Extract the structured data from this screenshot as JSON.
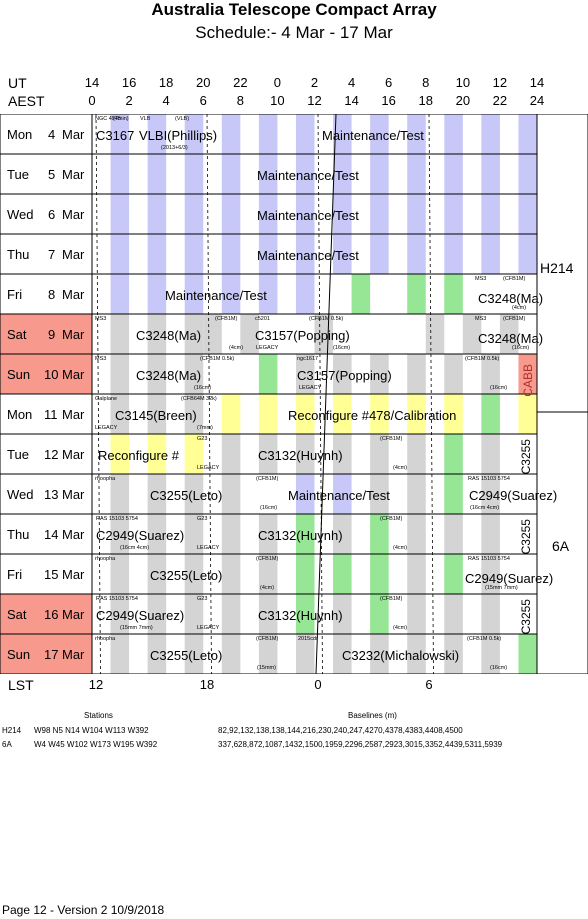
{
  "title": "Australia Telescope Compact Array",
  "subtitle": "Schedule:- 4  Mar - 17 Mar",
  "ut_label": "UT",
  "aest_label": "AEST",
  "ut_ticks": [
    "14",
    "16",
    "18",
    "20",
    "22",
    "0",
    "2",
    "4",
    "6",
    "8",
    "10",
    "12",
    "14"
  ],
  "aest_ticks": [
    "0",
    "2",
    "4",
    "6",
    "8",
    "10",
    "12",
    "14",
    "16",
    "18",
    "20",
    "22",
    "24"
  ],
  "lst_label": "LST",
  "lst_ticks": [
    "12",
    "18",
    "0",
    "6"
  ],
  "configs": [
    {
      "name": "H214"
    },
    {
      "name": "6A"
    }
  ],
  "colors": {
    "weekend": "#f7998c",
    "maint": "#c8c8f8",
    "green": "#96e696",
    "yellow": "#ffff96",
    "grey": "#d4d4d4"
  },
  "days": [
    {
      "day": "Mon",
      "date": "4",
      "month": "Mar",
      "weekend": false
    },
    {
      "day": "Tue",
      "date": "5",
      "month": "Mar",
      "weekend": false
    },
    {
      "day": "Wed",
      "date": "6",
      "month": "Mar",
      "weekend": false
    },
    {
      "day": "Thu",
      "date": "7",
      "month": "Mar",
      "weekend": false
    },
    {
      "day": "Fri",
      "date": "8",
      "month": "Mar",
      "weekend": false
    },
    {
      "day": "Sat",
      "date": "9",
      "month": "Mar",
      "weekend": true
    },
    {
      "day": "Sun",
      "date": "10",
      "month": "Mar",
      "weekend": true
    },
    {
      "day": "Mon",
      "date": "11",
      "month": "Mar",
      "weekend": false
    },
    {
      "day": "Tue",
      "date": "12",
      "month": "Mar",
      "weekend": false
    },
    {
      "day": "Wed",
      "date": "13",
      "month": "Mar",
      "weekend": false
    },
    {
      "day": "Thu",
      "date": "14",
      "month": "Mar",
      "weekend": false
    },
    {
      "day": "Fri",
      "date": "15",
      "month": "Mar",
      "weekend": false
    },
    {
      "day": "Sat",
      "date": "16",
      "month": "Mar",
      "weekend": true
    },
    {
      "day": "Sun",
      "date": "17",
      "month": "Mar",
      "weekend": true
    }
  ],
  "blocks": [
    {
      "row": 0,
      "label": "C3167",
      "notes": [
        "NGC 4945",
        "(7min)"
      ]
    },
    {
      "row": 0,
      "label": "VLBI(Phillips)",
      "notes": [
        "VLB",
        "(VLB)",
        "(2013+6/3)"
      ]
    },
    {
      "row": 0,
      "label": "Maintenance/Test"
    },
    {
      "row": 1,
      "label": "Maintenance/Test"
    },
    {
      "row": 2,
      "label": "Maintenance/Test"
    },
    {
      "row": 3,
      "label": "Maintenance/Test"
    },
    {
      "row": 4,
      "label": "Maintenance/Test"
    },
    {
      "row": 4,
      "label": "C3248(Ma)",
      "notes": [
        "MS3",
        "(CFB1M)",
        "(4cm)"
      ]
    },
    {
      "row": 5,
      "label": "C3248(Ma)",
      "notes": [
        "MS3",
        "(CFB1M)",
        "(4cm)"
      ]
    },
    {
      "row": 5,
      "label": "C3157(Popping)",
      "notes": [
        "c5201",
        "(CFB1M 0.5k)",
        "LEGACY",
        "(16cm)"
      ]
    },
    {
      "row": 5,
      "label": "C3248(Ma)",
      "notes": [
        "MS3",
        "(CFB1M)",
        "(16cm)"
      ]
    },
    {
      "row": 6,
      "label": "C3248(Ma)",
      "notes": [
        "MS3",
        "(CFB1M 0.5k)",
        "(16cm)"
      ]
    },
    {
      "row": 6,
      "label": "C3157(Popping)",
      "notes": [
        "ngc1617",
        "LEGACY",
        "(CFB1M 0.5k)",
        "(16cm)"
      ]
    },
    {
      "row": 6,
      "label": "CABB"
    },
    {
      "row": 7,
      "label": "C3145(Breen)",
      "notes": [
        "Galplane",
        "(CFB64M 32k)",
        "LEGACY",
        "(7mm)"
      ]
    },
    {
      "row": 7,
      "label": "Reconfigure #478/Calibration"
    },
    {
      "row": 8,
      "label": "Reconfigure #"
    },
    {
      "row": 8,
      "label": "C3132(Huynh)",
      "notes": [
        "G23",
        "LEGACY",
        "(CFB1M)",
        "(4cm)"
      ]
    },
    {
      "row": 8,
      "label": "C3255"
    },
    {
      "row": 9,
      "label": "C3255(Leto)",
      "notes": [
        "rhoopha",
        "(CFB1M)",
        "(16cm)"
      ]
    },
    {
      "row": 9,
      "label": "Maintenance/Test"
    },
    {
      "row": 9,
      "label": "C2949(Suarez)",
      "notes": [
        "RAS 15103 5754",
        "(16cm 4cm)"
      ]
    },
    {
      "row": 10,
      "label": "C2949(Suarez)",
      "notes": [
        "RAS 15103 5754",
        "(16cm 4cm)"
      ]
    },
    {
      "row": 10,
      "label": "C3132(Huynh)",
      "notes": [
        "G23",
        "LEGACY",
        "(CFB1M)",
        "(4cm)"
      ]
    },
    {
      "row": 10,
      "label": "C3255"
    },
    {
      "row": 11,
      "label": "C3255(Leto)",
      "notes": [
        "rhoopha",
        "(CFB1M)",
        "(4cm)"
      ]
    },
    {
      "row": 11,
      "label": "C2949(Suarez)",
      "notes": [
        "RAS 15103 5754",
        "(15mm 7mm)"
      ]
    },
    {
      "row": 12,
      "label": "C2949(Suarez)",
      "notes": [
        "RAS 15103 5754",
        "(15mm 7mm)"
      ]
    },
    {
      "row": 12,
      "label": "C3132(Huynh)",
      "notes": [
        "G23",
        "LEGACY",
        "(CFB1M)",
        "(4cm)"
      ]
    },
    {
      "row": 12,
      "label": "C3255"
    },
    {
      "row": 13,
      "label": "C3255(Leto)",
      "notes": [
        "rhoopha",
        "(CFB1M)",
        "(15mm)"
      ]
    },
    {
      "row": 13,
      "label": "C3232(Michalowski)",
      "notes": [
        "2015cdr",
        "(CFB1M 0.5k)",
        "(16cm)"
      ]
    }
  ],
  "stations": {
    "header": "Stations",
    "baselines_header": "Baselines (m)",
    "rows": [
      {
        "config": "H214",
        "stations": "W98 N5 N14 W104 W113 W392",
        "baselines": "82,92,132,138,138,144,216,230,240,247,4270,4378,4383,4408,4500"
      },
      {
        "config": "6A",
        "stations": "W4 W45 W102 W173 W195 W392",
        "baselines": "337,628,872,1087,1432,1500,1959,2296,2587,2923,3015,3352,4439,5311,5939"
      }
    ]
  },
  "footer": "Page 12 - Version 2  10/9/2018"
}
